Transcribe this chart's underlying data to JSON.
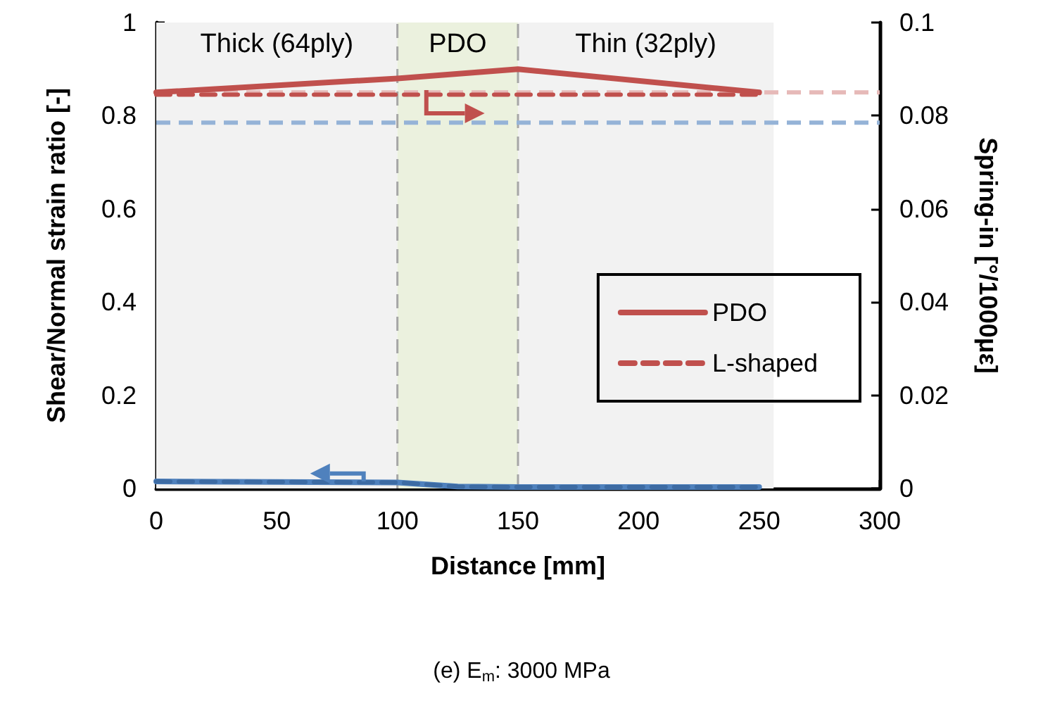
{
  "chart_data": {
    "type": "line",
    "title": "(e) E$_{m}$: 3000 MPa",
    "xlabel": "Distance [mm]",
    "ylabel": "Shear/Normal strain ratio [-]",
    "y2label": "Spring-in [°/1000με]",
    "xlim": [
      0,
      300
    ],
    "xticks": [
      0,
      50,
      100,
      150,
      200,
      250,
      300
    ],
    "ylim": [
      0,
      1
    ],
    "yticks": [
      0,
      0.2,
      0.4,
      0.6,
      0.8,
      1
    ],
    "y2lim": [
      0,
      0.1
    ],
    "y2ticks": [
      0,
      0.02,
      0.04,
      0.06,
      0.08,
      0.1
    ],
    "grid": false,
    "legend": "right",
    "marker": "none",
    "series": [
      {
        "name": "PDO",
        "color": "#c0504d",
        "axis": "y2",
        "line_style": "solid",
        "x": [
          0,
          100,
          150,
          250
        ],
        "values": [
          0.085,
          0.088,
          0.09,
          0.085
        ]
      },
      {
        "name": "L-shaped",
        "color": "#c0504d",
        "axis": "y2",
        "line_style": "dashed",
        "x": [
          0,
          250
        ],
        "values": [
          0.0845,
          0.0845
        ]
      },
      {
        "color": "#4f81bd",
        "axis": "y",
        "line_style": "solid",
        "x": [
          0,
          100,
          125,
          150,
          250
        ],
        "values": [
          0.015,
          0.013,
          0.004,
          0.003,
          0.003
        ]
      },
      {
        "color": "#3d6ba3",
        "axis": "y",
        "line_style": "dashed",
        "x": [
          0,
          100,
          125,
          150,
          250
        ],
        "values": [
          0.015,
          0.013,
          0.004,
          0.003,
          0.003
        ]
      }
    ],
    "ref_lines": [
      {
        "axis": "y2",
        "value": 0.085,
        "color": "#e6b9b8",
        "line_style": "dashed"
      },
      {
        "axis": "y",
        "value": 0.785,
        "color": "#95b3d7",
        "line_style": "dashed"
      },
      {
        "axis": "x",
        "value": 100,
        "color": "#a6a6a6",
        "line_style": "dashed"
      },
      {
        "axis": "x",
        "value": 150,
        "color": "#a6a6a6",
        "line_style": "dashed"
      }
    ],
    "bands": [
      {
        "axis": "x",
        "from": 0,
        "to": 100,
        "label": "Thick (64ply)",
        "color": "#f2f2f2"
      },
      {
        "axis": "x",
        "from": 100,
        "to": 150,
        "label": "PDO",
        "color": "#ebf1de"
      },
      {
        "axis": "x",
        "from": 150,
        "to": 256,
        "label": "Thin (32ply)",
        "color": "#f2f2f2"
      }
    ]
  }
}
